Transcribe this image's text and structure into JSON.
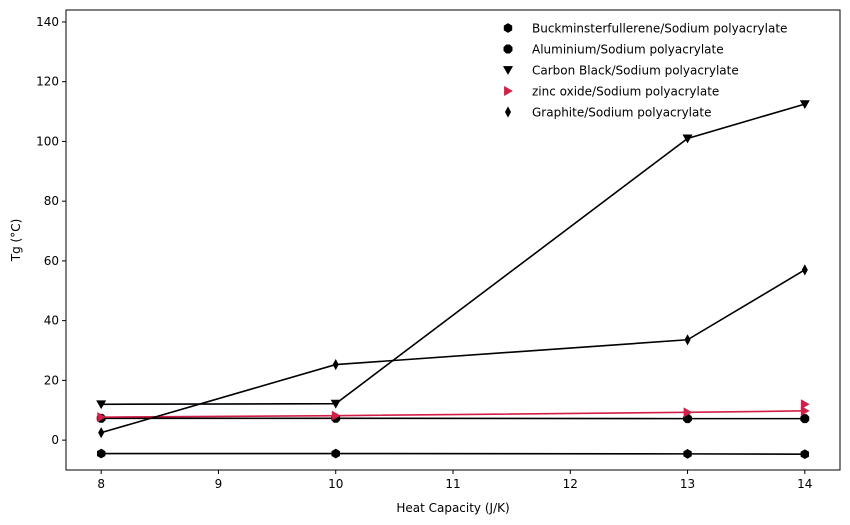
{
  "chart_data": {
    "type": "line",
    "xlabel": "Heat Capacity (J/K)",
    "ylabel": "Tg (°C)",
    "xlim": [
      7.7,
      14.3
    ],
    "ylim": [
      -10,
      144
    ],
    "xticks": [
      8,
      9,
      10,
      11,
      12,
      13,
      14
    ],
    "yticks": [
      0,
      20,
      40,
      60,
      80,
      100,
      120,
      140
    ],
    "grid": false,
    "legend_position": "top-right",
    "series": [
      {
        "name": "Buckminsterfullerene/Sodium polyacrylate",
        "marker": "hexagon",
        "color": "#000000",
        "x": [
          8,
          10,
          13,
          14
        ],
        "y": [
          -4.5,
          -4.5,
          -4.6,
          -4.7
        ]
      },
      {
        "name": "Aluminium/Sodium polyacrylate",
        "marker": "octagon",
        "color": "#000000",
        "x": [
          8,
          10,
          13,
          14
        ],
        "y": [
          7.3,
          7.3,
          7.2,
          7.2
        ]
      },
      {
        "name": "Carbon Black/Sodium polyacrylate",
        "marker": "triangle-down",
        "color": "#000000",
        "x": [
          8,
          10,
          13,
          14
        ],
        "y": [
          12.0,
          12.2,
          101.0,
          112.5
        ]
      },
      {
        "name": "zinc oxide/Sodium polyacrylate",
        "marker": "triangle-right",
        "color": "#d21f47",
        "x": [
          8,
          10,
          13,
          14
        ],
        "y": [
          7.7,
          8.2,
          9.3,
          9.8
        ]
      },
      {
        "name": " Graphite/Sodium polyacrylate",
        "marker": "thin-diamond",
        "color": "#000000",
        "x": [
          8,
          10,
          13,
          14
        ],
        "y": [
          2.5,
          25.3,
          33.6,
          57.0
        ]
      }
    ],
    "extra_markers": [
      {
        "series": "zinc oxide/Sodium polyacrylate",
        "x": 14,
        "y": 12.0
      }
    ]
  }
}
